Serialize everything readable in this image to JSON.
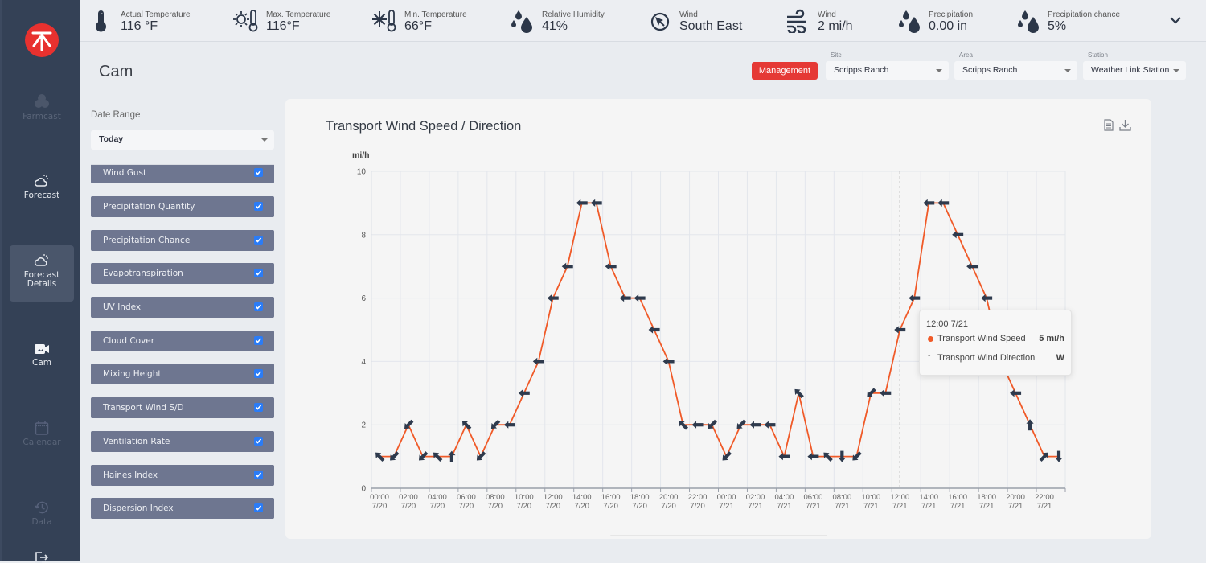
{
  "sidebar": {
    "items": [
      {
        "label": "Farmcast",
        "icon": "farmcast-icon",
        "state": "disabled"
      },
      {
        "label": "Forecast",
        "icon": "cloud-sun-icon",
        "state": "normal"
      },
      {
        "label": "Forecast Details",
        "icon": "cloud-sun-icon",
        "state": "active"
      },
      {
        "label": "Cam",
        "icon": "camera-icon",
        "state": "normal"
      },
      {
        "label": "Calendar",
        "icon": "calendar-icon",
        "state": "disabled"
      },
      {
        "label": "Data",
        "icon": "history-icon",
        "state": "disabled"
      }
    ],
    "logo_color": "#e8312f"
  },
  "weather_bar": {
    "items": [
      {
        "label": "Actual Temperature",
        "value": "116 °F",
        "icon": "thermometer-icon"
      },
      {
        "label": "Max. Temperature",
        "value": "116°F",
        "icon": "max-temperature-icon"
      },
      {
        "label": "Min. Temperature",
        "value": "66°F",
        "icon": "min-temperature-icon"
      },
      {
        "label": "Relative Humidity",
        "value": "41%",
        "icon": "humidity-icon"
      },
      {
        "label": "Wind",
        "value": "South East",
        "icon": "wind-direction-icon"
      },
      {
        "label": "Wind",
        "value": "2 mi/h",
        "icon": "wind-icon"
      },
      {
        "label": "Precipitation",
        "value": "0.00 in",
        "icon": "precipitation-icon"
      },
      {
        "label": "Precipitation chance",
        "value": "5%",
        "icon": "precipitation-chance-icon"
      }
    ]
  },
  "page": {
    "title": "Cam"
  },
  "toolbar": {
    "management_label": "Management",
    "management_color": "#e53935",
    "site": {
      "label": "Site",
      "value": "Scripps Ranch"
    },
    "area": {
      "label": "Area",
      "value": "Scripps Ranch"
    },
    "station": {
      "label": "Station",
      "value": "Weather Link Station"
    }
  },
  "filters": {
    "date_range_label": "Date Range",
    "date_range_value": "Today",
    "items": [
      {
        "label": "Wind Gust",
        "checked": true
      },
      {
        "label": "Precipitation Quantity",
        "checked": true
      },
      {
        "label": "Precipitation Chance",
        "checked": true
      },
      {
        "label": "Evapotranspiration",
        "checked": true
      },
      {
        "label": "UV Index",
        "checked": true
      },
      {
        "label": "Cloud Cover",
        "checked": true
      },
      {
        "label": "Mixing Height",
        "checked": true
      },
      {
        "label": "Transport Wind S/D",
        "checked": true
      },
      {
        "label": "Ventilation Rate",
        "checked": true
      },
      {
        "label": "Haines Index",
        "checked": true
      },
      {
        "label": "Dispersion Index",
        "checked": true
      }
    ]
  },
  "chart_card": {
    "title": "Transport Wind Speed / Direction",
    "icons": [
      "document-icon",
      "download-icon"
    ]
  },
  "tooltip": {
    "time": "12:00 7/21",
    "rows": [
      {
        "label": "Transport Wind Speed",
        "value": "5 mi/h"
      },
      {
        "label": "Transport Wind Direction",
        "value": "W"
      }
    ]
  },
  "chart_data": {
    "type": "line",
    "title": "Transport Wind Speed / Direction",
    "xlabel": "",
    "ylabel": "mi/h",
    "ylim": [
      0,
      10
    ],
    "yticks": [
      0,
      2,
      4,
      6,
      8,
      10
    ],
    "grid": true,
    "legend": "none",
    "xtick_labels": [
      {
        "time": "00:00",
        "date": "7/20"
      },
      {
        "time": "02:00",
        "date": "7/20"
      },
      {
        "time": "04:00",
        "date": "7/20"
      },
      {
        "time": "06:00",
        "date": "7/20"
      },
      {
        "time": "08:00",
        "date": "7/20"
      },
      {
        "time": "10:00",
        "date": "7/20"
      },
      {
        "time": "12:00",
        "date": "7/20"
      },
      {
        "time": "14:00",
        "date": "7/20"
      },
      {
        "time": "16:00",
        "date": "7/20"
      },
      {
        "time": "18:00",
        "date": "7/20"
      },
      {
        "time": "20:00",
        "date": "7/20"
      },
      {
        "time": "22:00",
        "date": "7/20"
      },
      {
        "time": "00:00",
        "date": "7/21"
      },
      {
        "time": "02:00",
        "date": "7/21"
      },
      {
        "time": "04:00",
        "date": "7/21"
      },
      {
        "time": "06:00",
        "date": "7/21"
      },
      {
        "time": "08:00",
        "date": "7/21"
      },
      {
        "time": "10:00",
        "date": "7/21"
      },
      {
        "time": "12:00",
        "date": "7/21"
      },
      {
        "time": "14:00",
        "date": "7/21"
      },
      {
        "time": "16:00",
        "date": "7/21"
      },
      {
        "time": "18:00",
        "date": "7/21"
      },
      {
        "time": "20:00",
        "date": "7/21"
      },
      {
        "time": "22:00",
        "date": "7/21"
      }
    ],
    "x": [
      "00:00 7/20",
      "01:00 7/20",
      "02:00 7/20",
      "03:00 7/20",
      "04:00 7/20",
      "05:00 7/20",
      "06:00 7/20",
      "07:00 7/20",
      "08:00 7/20",
      "09:00 7/20",
      "10:00 7/20",
      "11:00 7/20",
      "12:00 7/20",
      "13:00 7/20",
      "14:00 7/20",
      "15:00 7/20",
      "16:00 7/20",
      "17:00 7/20",
      "18:00 7/20",
      "19:00 7/20",
      "20:00 7/20",
      "21:00 7/20",
      "22:00 7/20",
      "23:00 7/20",
      "00:00 7/21",
      "01:00 7/21",
      "02:00 7/21",
      "03:00 7/21",
      "04:00 7/21",
      "05:00 7/21",
      "06:00 7/21",
      "07:00 7/21",
      "08:00 7/21",
      "09:00 7/21",
      "10:00 7/21",
      "11:00 7/21",
      "12:00 7/21",
      "13:00 7/21",
      "14:00 7/21",
      "15:00 7/21",
      "16:00 7/21",
      "17:00 7/21",
      "18:00 7/21",
      "19:00 7/21",
      "20:00 7/21",
      "21:00 7/21",
      "22:00 7/21",
      "23:00 7/21"
    ],
    "series": [
      {
        "name": "Transport Wind Speed",
        "unit": "mi/h",
        "color": "#f05a28",
        "values": [
          1,
          1,
          2,
          1,
          1,
          1,
          2,
          1,
          2,
          2,
          3,
          4,
          6,
          7,
          9,
          9,
          7,
          6,
          6,
          5,
          4,
          2,
          2,
          2,
          1,
          2,
          2,
          2,
          1,
          3,
          1,
          1,
          1,
          1,
          3,
          3,
          5,
          6,
          9,
          9,
          8,
          7,
          6,
          4,
          3,
          2,
          1,
          1
        ]
      },
      {
        "name": "Transport Wind Direction",
        "color": "#2e3a4d",
        "values": [
          "NW",
          "SW",
          "SW",
          "SW",
          "NW",
          "N",
          "NW",
          "SW",
          "SW",
          "W",
          "W",
          "W",
          "W",
          "W",
          "W",
          "W",
          "W",
          "W",
          "W",
          "W",
          "W",
          "NW",
          "W",
          "SW",
          "SW",
          "SW",
          "W",
          "W",
          "W",
          "NW",
          "W",
          "NW",
          "S",
          "SW",
          "SW",
          "W",
          "W",
          "W",
          "W",
          "W",
          "W",
          "W",
          "W",
          "W",
          "W",
          "N",
          "NE",
          "S"
        ]
      }
    ],
    "highlight": {
      "index": 36,
      "x": "12:00 7/21"
    }
  }
}
